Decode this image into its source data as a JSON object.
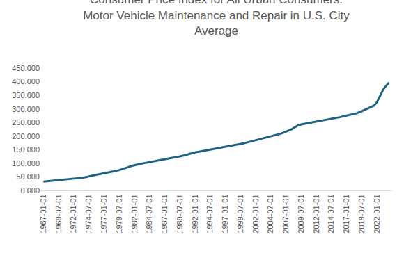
{
  "chart_data": {
    "type": "line",
    "title": "Consumer Price Index for All Urban Consumers: Motor Vehicle Maintenance and Repair in U.S. City Average",
    "categories": [
      "1967-01-01",
      null,
      null,
      null,
      null,
      "1969-07-01",
      null,
      null,
      null,
      null,
      "1972-01-01",
      null,
      null,
      null,
      null,
      "1974-07-01",
      null,
      null,
      null,
      null,
      "1977-01-01",
      null,
      null,
      null,
      null,
      "1979-07-01",
      null,
      null,
      null,
      null,
      "1982-01-01",
      null,
      null,
      null,
      null,
      "1984-07-01",
      null,
      null,
      null,
      null,
      "1987-01-01",
      null,
      null,
      null,
      null,
      "1989-07-01",
      null,
      null,
      null,
      null,
      "1992-01-01",
      null,
      null,
      null,
      null,
      "1994-07-01",
      null,
      null,
      null,
      null,
      "1997-01-01",
      null,
      null,
      null,
      null,
      "1999-07-01",
      null,
      null,
      null,
      null,
      "2002-01-01",
      null,
      null,
      null,
      null,
      "2004-07-01",
      null,
      null,
      null,
      null,
      "2007-01-01",
      null,
      null,
      null,
      null,
      "2009-07-01",
      null,
      null,
      null,
      null,
      "2012-01-01",
      null,
      null,
      null,
      null,
      "2014-07-01",
      null,
      null,
      null,
      null,
      "2017-01-01",
      null,
      null,
      null,
      null,
      "2019-07-01",
      null,
      null,
      null,
      null,
      "2022-01-01",
      null,
      null,
      null,
      null
    ],
    "values": [
      32.5,
      33.5,
      34.5,
      35.5,
      36.5,
      37.7,
      39,
      40.5,
      42,
      43,
      43.8,
      44.5,
      45.5,
      47,
      49,
      52,
      55,
      57,
      59,
      61,
      63,
      65,
      67,
      69.5,
      72,
      75,
      78,
      82,
      86,
      90,
      93,
      96,
      98,
      100,
      102,
      104,
      106,
      108,
      110,
      112,
      114,
      116,
      118,
      120.5,
      123,
      125.5,
      128,
      131,
      135,
      138,
      140,
      142,
      144,
      146,
      148,
      150,
      152,
      154,
      156,
      158,
      160,
      162,
      165,
      167,
      169,
      171,
      173,
      176,
      179,
      182,
      185,
      188,
      191,
      194,
      196,
      198,
      201,
      204,
      208,
      212,
      216,
      220,
      226,
      233,
      240,
      243,
      245,
      247,
      249,
      251,
      254,
      256,
      258,
      260,
      262,
      264,
      266,
      268,
      270,
      273,
      275,
      277,
      280,
      283,
      287,
      292,
      297,
      302,
      307,
      312,
      325,
      348,
      370,
      385,
      397
    ],
    "color": "#1f6383",
    "ylim": [
      0,
      450
    ],
    "yticks": [
      {
        "value": 0,
        "label": "0.000"
      },
      {
        "value": 50,
        "label": "50.000"
      },
      {
        "value": 100,
        "label": "100.000"
      },
      {
        "value": 150,
        "label": "150.000"
      },
      {
        "value": 200,
        "label": "200.000"
      },
      {
        "value": 250,
        "label": "250.000"
      },
      {
        "value": 300,
        "label": "300.000"
      },
      {
        "value": 350,
        "label": "350.000"
      },
      {
        "value": 400,
        "label": "400.000"
      },
      {
        "value": 450,
        "label": "450.000"
      }
    ],
    "grid": false
  }
}
